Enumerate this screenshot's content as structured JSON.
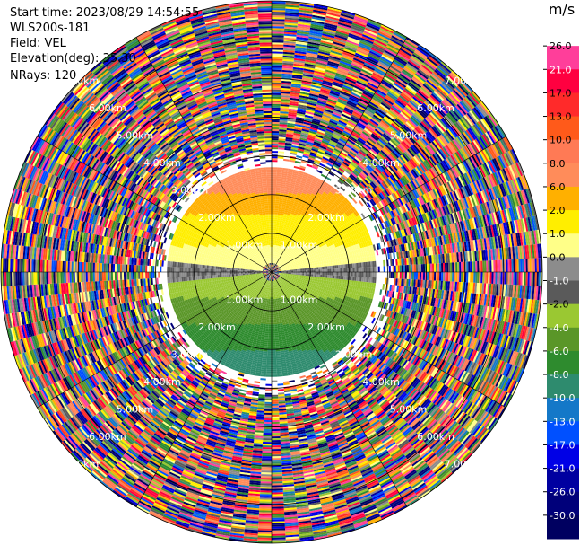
{
  "header": {
    "start_time": "Start time: 2023/08/29 14:54:55",
    "instrument": "WLS200s-181",
    "field": "Field: VEL",
    "elevation": "Elevation(deg): 35.30",
    "nrays": "NRays: 120"
  },
  "chart_data": {
    "type": "heatmap",
    "projection": "polar-ppi",
    "field": "VEL",
    "unit": "m/s",
    "n_rays": 120,
    "max_range_km": 7.0,
    "range_rings_km": [
      1.0,
      2.0,
      3.0,
      4.0,
      5.0,
      6.0,
      7.0
    ],
    "ring_labels": [
      "1.00km",
      "2.00km",
      "3.00km",
      "4.00km",
      "5.00km",
      "6.00km",
      "7.00km"
    ],
    "colorbar": {
      "unit_label": "m/s",
      "min": -30.0,
      "max": 30.0,
      "tick_labels": [
        "26.0",
        "21.0",
        "17.0",
        "13.0",
        "10.0",
        "8.0",
        "6.0",
        "2.0",
        "1.0",
        "0.0",
        "-1.0",
        "-2.0",
        "-4.0",
        "-6.0",
        "-8.0",
        "-10.0",
        "-13.0",
        "-17.0",
        "-21.0",
        "-26.0",
        "-30.0"
      ],
      "colors": [
        "#ffffff",
        "#ff3e9a",
        "#ff0040",
        "#ff2a2a",
        "#ff5a1a",
        "#ff7a55",
        "#ff8c5a",
        "#ffb000",
        "#ffee00",
        "#ffff88",
        "#8c8c8c",
        "#5a5a5a",
        "#9ac832",
        "#5a9628",
        "#2e8b2e",
        "#2e8b6e",
        "#1478c8",
        "#0050ff",
        "#0000e6",
        "#0000a0",
        "#00007a",
        "#000060"
      ]
    }
  }
}
